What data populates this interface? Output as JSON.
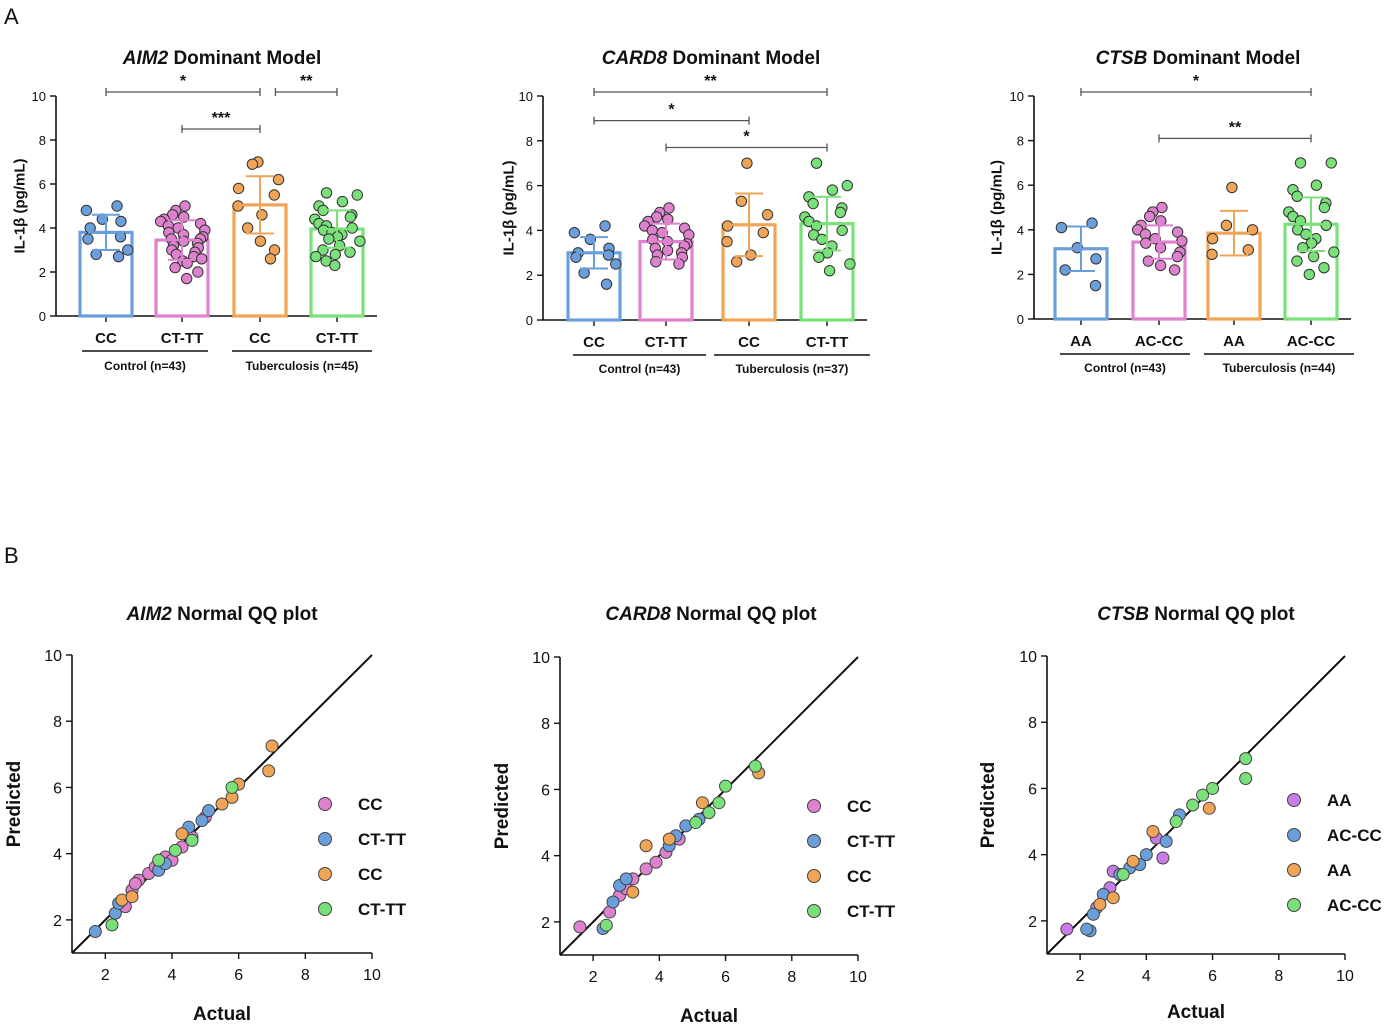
{
  "panels": {
    "a": "A",
    "b": "B"
  },
  "colors": {
    "blue": "#6a9fdc",
    "pink": "#de82cf",
    "orange": "#f0a456",
    "green": "#7ae07a",
    "purple": "#c97be8",
    "axis": "#111111",
    "bracket": "#555555"
  },
  "chart_data": [
    {
      "type": "bar",
      "title": "Dominant Model",
      "gene": "AIM2",
      "ylabel": "IL-1β (pg/mL)",
      "ylim": [
        0,
        10
      ],
      "yticks": [
        0,
        2,
        4,
        6,
        8,
        10
      ],
      "categories": [
        "CC",
        "CT-TT",
        "CC",
        "CT-TT"
      ],
      "bar_colors": [
        "blue",
        "pink",
        "orange",
        "green"
      ],
      "values": [
        3.8,
        3.45,
        5.05,
        3.95
      ],
      "sd": [
        0.8,
        0.9,
        1.3,
        0.85
      ],
      "points": [
        [
          5.0,
          4.8,
          4.4,
          4.3,
          4.0,
          3.6,
          3.5,
          3.0,
          2.8,
          2.7
        ],
        [
          5.0,
          4.8,
          4.6,
          4.5,
          4.4,
          4.3,
          4.2,
          4.1,
          4.0,
          3.9,
          3.8,
          3.7,
          3.6,
          3.5,
          3.5,
          3.4,
          3.3,
          3.2,
          3.1,
          3.0,
          2.9,
          2.8,
          2.7,
          2.6,
          2.5,
          2.4,
          2.2,
          2.0,
          1.7
        ],
        [
          7.0,
          6.9,
          6.2,
          5.8,
          5.5,
          5.0,
          4.6,
          4.0,
          3.4,
          3.0,
          2.6
        ],
        [
          5.6,
          5.5,
          5.2,
          5.0,
          4.8,
          4.6,
          4.5,
          4.4,
          4.2,
          4.1,
          4.0,
          3.9,
          3.8,
          3.7,
          3.6,
          3.5,
          3.4,
          3.2,
          3.0,
          2.9,
          2.8,
          2.7,
          2.5,
          2.3
        ]
      ],
      "groups": [
        {
          "label": "Control (n=43)",
          "span": [
            0,
            1
          ]
        },
        {
          "label": "Tuberculosis (n=45)",
          "span": [
            2,
            3
          ]
        }
      ],
      "brackets": [
        {
          "from": 0,
          "to": 2,
          "y": 10,
          "label": "*"
        },
        {
          "from": 2.2,
          "to": 3,
          "y": 10,
          "label": "**"
        },
        {
          "from": 1,
          "to": 2,
          "y": 8.5,
          "label": "***"
        }
      ]
    },
    {
      "type": "bar",
      "title": "Dominant Model",
      "gene": "CARD8",
      "ylabel": "IL-1β (pg/mL)",
      "ylim": [
        0,
        10
      ],
      "yticks": [
        0,
        2,
        4,
        6,
        8,
        10
      ],
      "categories": [
        "CC",
        "CT-TT",
        "CC",
        "CT-TT"
      ],
      "bar_colors": [
        "blue",
        "pink",
        "orange",
        "green"
      ],
      "values": [
        3.0,
        3.5,
        4.25,
        4.3
      ],
      "sd": [
        0.7,
        0.8,
        1.4,
        1.2
      ],
      "points": [
        [
          4.2,
          3.9,
          3.6,
          3.2,
          3.0,
          2.9,
          2.8,
          2.5,
          2.1,
          1.6
        ],
        [
          5.0,
          4.8,
          4.6,
          4.5,
          4.4,
          4.2,
          4.1,
          4.0,
          3.9,
          3.8,
          3.6,
          3.5,
          3.4,
          3.3,
          3.2,
          3.1,
          3.0,
          2.9,
          2.8,
          2.6,
          2.5
        ],
        [
          7.0,
          5.3,
          4.7,
          4.2,
          3.9,
          3.5,
          2.9,
          2.6
        ],
        [
          7.0,
          6.0,
          5.8,
          5.5,
          5.2,
          5.0,
          4.8,
          4.6,
          4.4,
          4.2,
          4.0,
          3.8,
          3.6,
          3.3,
          3.0,
          2.8,
          2.5,
          2.2
        ]
      ],
      "groups": [
        {
          "label": "Control (n=43)",
          "span": [
            0,
            1
          ]
        },
        {
          "label": "Tuberculosis (n=37)",
          "span": [
            2,
            3
          ]
        }
      ],
      "brackets": [
        {
          "from": 0,
          "to": 3,
          "y": 10,
          "label": "**"
        },
        {
          "from": 0,
          "to": 2,
          "y": 8.9,
          "label": "*"
        },
        {
          "from": 1,
          "to": 3,
          "y": 7.7,
          "label": "*"
        }
      ]
    },
    {
      "type": "bar",
      "title": "Dominant Model",
      "gene": "CTSB",
      "ylabel": "IL-1β (pg/mL)",
      "ylim": [
        0,
        10
      ],
      "yticks": [
        0,
        2,
        4,
        6,
        8,
        10
      ],
      "categories": [
        "AA",
        "AC-CC",
        "AA",
        "AC-CC"
      ],
      "bar_colors": [
        "blue",
        "pink",
        "orange",
        "green"
      ],
      "values": [
        3.15,
        3.45,
        3.85,
        4.25
      ],
      "sd": [
        1.0,
        0.75,
        1.0,
        1.2
      ],
      "points": [
        [
          4.3,
          4.1,
          3.2,
          2.7,
          2.2,
          1.5
        ],
        [
          5.0,
          4.8,
          4.6,
          4.4,
          4.2,
          4.0,
          3.9,
          3.8,
          3.6,
          3.5,
          3.4,
          3.2,
          3.0,
          2.8,
          2.6,
          2.4,
          2.2
        ],
        [
          5.9,
          4.2,
          4.0,
          3.6,
          3.1,
          2.9
        ],
        [
          7.0,
          7.0,
          6.0,
          5.8,
          5.5,
          5.2,
          5.0,
          4.8,
          4.6,
          4.4,
          4.2,
          4.0,
          3.8,
          3.6,
          3.4,
          3.2,
          3.0,
          2.8,
          2.6,
          2.3,
          2.0
        ]
      ],
      "groups": [
        {
          "label": "Control (n=43)",
          "span": [
            0,
            1
          ]
        },
        {
          "label": "Tuberculosis (n=44)",
          "span": [
            2,
            3
          ]
        }
      ],
      "brackets": [
        {
          "from": 0,
          "to": 3,
          "y": 10,
          "label": "*"
        },
        {
          "from": 1,
          "to": 3,
          "y": 8.1,
          "label": "**"
        }
      ]
    },
    {
      "type": "scatter",
      "title": "Normal QQ plot",
      "gene": "AIM2",
      "xlabel": "Actual",
      "ylabel": "Predicted",
      "xlim": [
        1,
        10
      ],
      "ylim": [
        1,
        10
      ],
      "xticks": [
        2,
        4,
        6,
        8,
        10
      ],
      "yticks": [
        2,
        4,
        6,
        8,
        10
      ],
      "reference_line": [
        [
          1,
          1
        ],
        [
          10,
          10
        ]
      ],
      "series": [
        {
          "name": "CC",
          "color": "pink",
          "points": [
            [
              2.6,
              2.4
            ],
            [
              2.8,
              2.9
            ],
            [
              3.0,
              3.2
            ],
            [
              3.3,
              3.4
            ],
            [
              3.5,
              3.6
            ],
            [
              3.8,
              3.9
            ],
            [
              4.0,
              3.8
            ],
            [
              4.3,
              4.2
            ],
            [
              4.6,
              4.5
            ],
            [
              5.0,
              5.1
            ],
            [
              2.9,
              3.1
            ]
          ]
        },
        {
          "name": "CT-TT",
          "color": "blue",
          "points": [
            [
              1.7,
              1.65
            ],
            [
              2.3,
              2.2
            ],
            [
              2.4,
              2.5
            ],
            [
              3.6,
              3.5
            ],
            [
              3.8,
              3.7
            ],
            [
              4.5,
              4.8
            ],
            [
              4.9,
              5.0
            ],
            [
              5.1,
              5.3
            ]
          ]
        },
        {
          "name": "CC",
          "color": "orange",
          "points": [
            [
              2.5,
              2.6
            ],
            [
              2.8,
              2.7
            ],
            [
              4.3,
              4.6
            ],
            [
              5.5,
              5.5
            ],
            [
              5.8,
              5.7
            ],
            [
              6.0,
              6.1
            ],
            [
              7.0,
              7.25
            ],
            [
              6.9,
              6.5
            ]
          ]
        },
        {
          "name": "CT-TT",
          "color": "green",
          "points": [
            [
              2.2,
              1.85
            ],
            [
              3.6,
              3.8
            ],
            [
              4.1,
              4.1
            ],
            [
              5.8,
              6.0
            ],
            [
              4.6,
              4.4
            ]
          ]
        }
      ]
    },
    {
      "type": "scatter",
      "title": "Normal QQ plot",
      "gene": "CARD8",
      "xlabel": "Actual",
      "ylabel": "Predicted",
      "xlim": [
        1,
        10
      ],
      "ylim": [
        1,
        10
      ],
      "xticks": [
        2,
        4,
        6,
        8,
        10
      ],
      "yticks": [
        2,
        4,
        6,
        8,
        10
      ],
      "reference_line": [
        [
          1,
          1
        ],
        [
          10,
          10
        ]
      ],
      "series": [
        {
          "name": "CC",
          "color": "pink",
          "points": [
            [
              1.6,
              1.85
            ],
            [
              2.5,
              2.3
            ],
            [
              2.8,
              2.8
            ],
            [
              3.0,
              3.0
            ],
            [
              3.2,
              3.3
            ],
            [
              3.6,
              3.6
            ],
            [
              3.9,
              3.8
            ],
            [
              4.2,
              4.1
            ],
            [
              4.6,
              4.5
            ]
          ]
        },
        {
          "name": "CT-TT",
          "color": "blue",
          "points": [
            [
              2.3,
              1.8
            ],
            [
              2.6,
              2.6
            ],
            [
              2.8,
              3.1
            ],
            [
              3.0,
              3.3
            ],
            [
              4.3,
              4.3
            ],
            [
              4.5,
              4.6
            ],
            [
              4.8,
              4.9
            ],
            [
              5.2,
              5.1
            ]
          ]
        },
        {
          "name": "CC",
          "color": "orange",
          "points": [
            [
              3.2,
              2.9
            ],
            [
              3.6,
              4.3
            ],
            [
              4.3,
              4.5
            ],
            [
              5.3,
              5.6
            ],
            [
              7.0,
              6.5
            ]
          ]
        },
        {
          "name": "CT-TT",
          "color": "green",
          "points": [
            [
              2.4,
              1.9
            ],
            [
              5.5,
              5.3
            ],
            [
              5.8,
              5.6
            ],
            [
              6.0,
              6.1
            ],
            [
              6.9,
              6.7
            ],
            [
              5.1,
              5.0
            ]
          ]
        }
      ]
    },
    {
      "type": "scatter",
      "title": "Normal QQ plot",
      "gene": "CTSB",
      "xlabel": "Actual",
      "ylabel": "Predicted",
      "xlim": [
        1,
        10
      ],
      "ylim": [
        1,
        10
      ],
      "xticks": [
        2,
        4,
        6,
        8,
        10
      ],
      "yticks": [
        2,
        4,
        6,
        8,
        10
      ],
      "reference_line": [
        [
          1,
          1
        ],
        [
          10,
          10
        ]
      ],
      "series": [
        {
          "name": "AA",
          "color": "purple",
          "points": [
            [
              1.6,
              1.75
            ],
            [
              2.5,
              2.4
            ],
            [
              2.9,
              3.0
            ],
            [
              3.0,
              3.5
            ],
            [
              4.3,
              4.5
            ],
            [
              4.5,
              3.9
            ]
          ]
        },
        {
          "name": "AC-CC",
          "color": "blue",
          "points": [
            [
              2.3,
              1.7
            ],
            [
              2.4,
              2.2
            ],
            [
              2.7,
              2.8
            ],
            [
              3.2,
              3.4
            ],
            [
              3.5,
              3.6
            ],
            [
              3.8,
              3.7
            ],
            [
              4.0,
              4.0
            ],
            [
              4.6,
              4.4
            ],
            [
              5.0,
              5.2
            ],
            [
              2.2,
              1.75
            ]
          ]
        },
        {
          "name": "AA",
          "color": "orange",
          "points": [
            [
              2.6,
              2.5
            ],
            [
              3.0,
              2.7
            ],
            [
              3.6,
              3.8
            ],
            [
              4.2,
              4.7
            ],
            [
              5.9,
              5.4
            ]
          ]
        },
        {
          "name": "AC-CC",
          "color": "green",
          "points": [
            [
              3.3,
              3.4
            ],
            [
              4.9,
              5.0
            ],
            [
              5.4,
              5.5
            ],
            [
              5.7,
              5.8
            ],
            [
              6.0,
              6.0
            ],
            [
              7.0,
              6.9
            ],
            [
              7.0,
              6.3
            ]
          ]
        }
      ]
    }
  ]
}
